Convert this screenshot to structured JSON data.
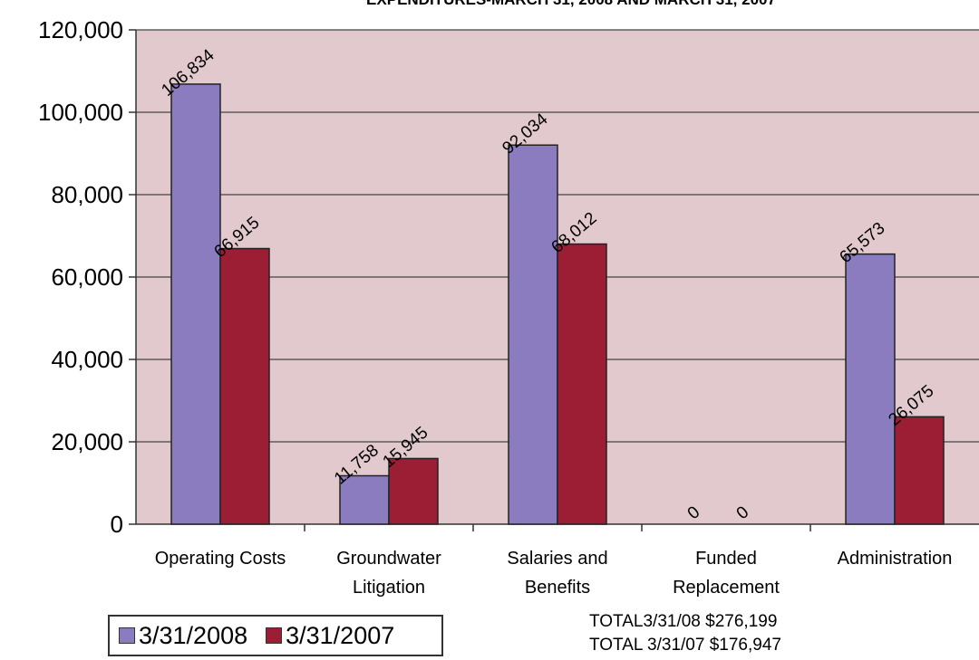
{
  "chart_data": {
    "type": "bar",
    "title": "EXPENDITURES-MARCH 31, 2008 AND MARCH 31, 2007",
    "categories": [
      [
        "Operating Costs"
      ],
      [
        "Groundwater",
        "Litigation"
      ],
      [
        "Salaries and",
        "Benefits"
      ],
      [
        "Funded",
        "Replacement"
      ],
      [
        "Administration"
      ]
    ],
    "series": [
      {
        "name": "3/31/2008",
        "color": "#8b7bbf",
        "values": [
          106834,
          11758,
          92034,
          0,
          65573
        ]
      },
      {
        "name": "3/31/2007",
        "color": "#9b1e35",
        "values": [
          66915,
          15945,
          68012,
          0,
          26075
        ]
      }
    ],
    "data_labels": [
      [
        "106,834",
        "11,758",
        "92,034",
        "0",
        "65,573"
      ],
      [
        "66,915",
        "15,945",
        "68,012",
        "0",
        "26,075"
      ]
    ],
    "yticks": [
      "0",
      "20,000",
      "40,000",
      "60,000",
      "80,000",
      "100,000",
      "120,000"
    ],
    "ylim": [
      0,
      120000
    ],
    "grid": true,
    "legend_position": "bottom-left",
    "totals": [
      "TOTAL3/31/08  $276,199",
      "TOTAL 3/31/07 $176,947"
    ],
    "plot_background": "#e2c9cd"
  }
}
